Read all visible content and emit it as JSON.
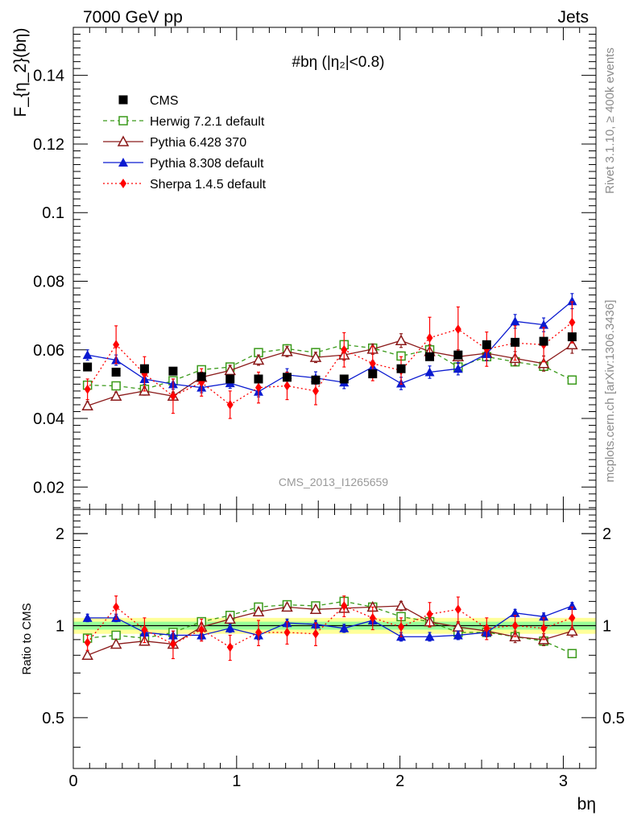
{
  "header": {
    "left_title": "7000 GeV pp",
    "right_title": "Jets"
  },
  "side_labels": {
    "rivet": "Rivet 3.1.10, ≥ 400k events",
    "mcplots": "mcplots.cern.ch [arXiv:1306.3436]"
  },
  "watermark": "CMS_2013_I1265659",
  "colors": {
    "cms": "#000000",
    "herwig": "#3a9a1a",
    "pythia6": "#8b1a1a",
    "pythia8": "#0a1ad0",
    "sherpa": "#ff0000",
    "band_outer": "#ffff99",
    "band_inner": "#99ff99"
  },
  "chart_data": [
    {
      "type": "line",
      "panel": "main",
      "title": "#bη (|η₂|<0.8)",
      "ylabel": "F_{η_2}(bη)",
      "xlim": [
        0,
        3.2
      ],
      "ylim": [
        0.0135,
        0.154
      ],
      "yticks": [
        0.02,
        0.04,
        0.06,
        0.08,
        0.1,
        0.12,
        0.14
      ],
      "ytick_labels": [
        "0.02",
        "0.04",
        "0.06",
        "0.08",
        "0.1",
        "0.12",
        "0.14"
      ],
      "x": [
        0.087,
        0.262,
        0.436,
        0.611,
        0.785,
        0.96,
        1.134,
        1.309,
        1.484,
        1.658,
        1.833,
        2.007,
        2.182,
        2.356,
        2.531,
        2.705,
        2.88,
        3.054
      ],
      "series": [
        {
          "name": "CMS",
          "key": "cms",
          "style": "points",
          "marker": "square-filled",
          "values": [
            0.055,
            0.0535,
            0.0545,
            0.0538,
            0.0522,
            0.0515,
            0.0515,
            0.052,
            0.0512,
            0.0515,
            0.053,
            0.0545,
            0.058,
            0.0585,
            0.0615,
            0.0622,
            0.0625,
            0.0638
          ],
          "errors": [
            0,
            0,
            0,
            0,
            0,
            0,
            0,
            0,
            0,
            0,
            0,
            0,
            0,
            0,
            0,
            0,
            0,
            0
          ]
        },
        {
          "name": "Herwig 7.2.1 default",
          "key": "herwig",
          "style": "dashed",
          "marker": "square-open",
          "values": [
            0.0497,
            0.0495,
            0.0485,
            0.051,
            0.0542,
            0.055,
            0.0592,
            0.0603,
            0.0592,
            0.0615,
            0.0605,
            0.0582,
            0.06,
            0.055,
            0.058,
            0.0565,
            0.0552,
            0.0512
          ],
          "errors": [
            0.001,
            0.001,
            0.001,
            0.001,
            0.001,
            0.001,
            0.001,
            0.0012,
            0.0012,
            0.0012,
            0.0012,
            0.0012,
            0.0012,
            0.0012,
            0.0012,
            0.0012,
            0.0012,
            0.0012
          ]
        },
        {
          "name": "Pythia 6.428 370",
          "key": "pythia6",
          "style": "solid",
          "marker": "triangle-open",
          "values": [
            0.0437,
            0.0465,
            0.048,
            0.0465,
            0.052,
            0.054,
            0.057,
            0.0595,
            0.0578,
            0.0585,
            0.0602,
            0.0627,
            0.0595,
            0.058,
            0.059,
            0.0575,
            0.056,
            0.0615
          ],
          "errors": [
            0.0012,
            0.0012,
            0.0012,
            0.0012,
            0.0015,
            0.0015,
            0.0015,
            0.0015,
            0.0015,
            0.0015,
            0.0015,
            0.002,
            0.002,
            0.002,
            0.002,
            0.002,
            0.0022,
            0.0025
          ]
        },
        {
          "name": "Pythia 8.308 default",
          "key": "pythia8",
          "style": "solid",
          "marker": "triangle-filled",
          "values": [
            0.0585,
            0.057,
            0.0515,
            0.05,
            0.049,
            0.0503,
            0.0478,
            0.0527,
            0.0518,
            0.0505,
            0.055,
            0.0502,
            0.0535,
            0.0545,
            0.0588,
            0.0683,
            0.0673,
            0.0742
          ],
          "errors": [
            0.0015,
            0.0015,
            0.0015,
            0.0015,
            0.0015,
            0.0015,
            0.0015,
            0.0018,
            0.0018,
            0.0018,
            0.0018,
            0.0018,
            0.0018,
            0.0018,
            0.002,
            0.002,
            0.002,
            0.0022
          ]
        },
        {
          "name": "Sherpa 1.4.5 default",
          "key": "sherpa",
          "style": "dotted",
          "marker": "diamond-filled",
          "values": [
            0.0485,
            0.0615,
            0.053,
            0.0465,
            0.0505,
            0.044,
            0.049,
            0.0495,
            0.048,
            0.06,
            0.056,
            0.054,
            0.0635,
            0.066,
            0.0602,
            0.062,
            0.0615,
            0.068
          ],
          "errors": [
            0.003,
            0.0055,
            0.005,
            0.005,
            0.004,
            0.004,
            0.0045,
            0.004,
            0.004,
            0.005,
            0.005,
            0.004,
            0.006,
            0.0065,
            0.005,
            0.005,
            0.005,
            0.006
          ]
        }
      ],
      "legend": {
        "placement": "top-left"
      }
    },
    {
      "type": "line",
      "panel": "ratio",
      "xlabel": "bη",
      "ylabel": "Ratio to CMS",
      "xlim": [
        0,
        3.2
      ],
      "ylim": [
        0.341,
        2.4
      ],
      "yscale": "log",
      "xticks": [
        0,
        1,
        2,
        3
      ],
      "xtick_labels": [
        "0",
        "1",
        "2",
        "3"
      ],
      "yticks": [
        0.5,
        1,
        2
      ],
      "ytick_labels": [
        "0.5",
        "1",
        "2"
      ],
      "reference_line": 1,
      "band_outer": [
        0.94,
        1.06
      ],
      "band_inner": [
        0.97,
        1.03
      ],
      "x": [
        0.087,
        0.262,
        0.436,
        0.611,
        0.785,
        0.96,
        1.134,
        1.309,
        1.484,
        1.658,
        1.833,
        2.007,
        2.182,
        2.356,
        2.531,
        2.705,
        2.88,
        3.054
      ],
      "series": [
        {
          "key": "herwig",
          "style": "dashed",
          "marker": "square-open",
          "values": [
            0.91,
            0.93,
            0.91,
            0.95,
            1.03,
            1.08,
            1.15,
            1.17,
            1.16,
            1.2,
            1.15,
            1.07,
            1.03,
            0.95,
            0.95,
            0.92,
            0.89,
            0.81
          ],
          "errors": [
            0.02,
            0.02,
            0.02,
            0.02,
            0.02,
            0.02,
            0.02,
            0.02,
            0.02,
            0.02,
            0.02,
            0.02,
            0.02,
            0.02,
            0.02,
            0.02,
            0.02,
            0.02
          ]
        },
        {
          "key": "pythia6",
          "style": "solid",
          "marker": "triangle-open",
          "values": [
            0.8,
            0.87,
            0.89,
            0.87,
            0.99,
            1.05,
            1.11,
            1.15,
            1.13,
            1.14,
            1.15,
            1.16,
            1.03,
            0.99,
            0.96,
            0.92,
            0.9,
            0.96
          ],
          "errors": [
            0.02,
            0.02,
            0.02,
            0.02,
            0.03,
            0.03,
            0.03,
            0.03,
            0.03,
            0.03,
            0.03,
            0.04,
            0.04,
            0.04,
            0.04,
            0.04,
            0.04,
            0.04
          ]
        },
        {
          "key": "pythia8",
          "style": "solid",
          "marker": "triangle-filled",
          "values": [
            1.06,
            1.06,
            0.95,
            0.93,
            0.93,
            0.98,
            0.93,
            1.02,
            1.01,
            0.98,
            1.04,
            0.92,
            0.92,
            0.93,
            0.95,
            1.1,
            1.07,
            1.16
          ],
          "errors": [
            0.03,
            0.03,
            0.03,
            0.03,
            0.03,
            0.03,
            0.03,
            0.03,
            0.03,
            0.03,
            0.03,
            0.03,
            0.03,
            0.03,
            0.03,
            0.03,
            0.03,
            0.03
          ]
        },
        {
          "key": "sherpa",
          "style": "dotted",
          "marker": "diamond-filled",
          "values": [
            0.88,
            1.15,
            0.97,
            0.87,
            0.97,
            0.85,
            0.95,
            0.95,
            0.94,
            1.16,
            1.06,
            0.99,
            1.09,
            1.13,
            0.98,
            1.0,
            0.98,
            1.06
          ],
          "errors": [
            0.05,
            0.1,
            0.09,
            0.09,
            0.08,
            0.08,
            0.09,
            0.08,
            0.08,
            0.09,
            0.09,
            0.07,
            0.1,
            0.11,
            0.08,
            0.08,
            0.08,
            0.09
          ]
        }
      ]
    }
  ]
}
